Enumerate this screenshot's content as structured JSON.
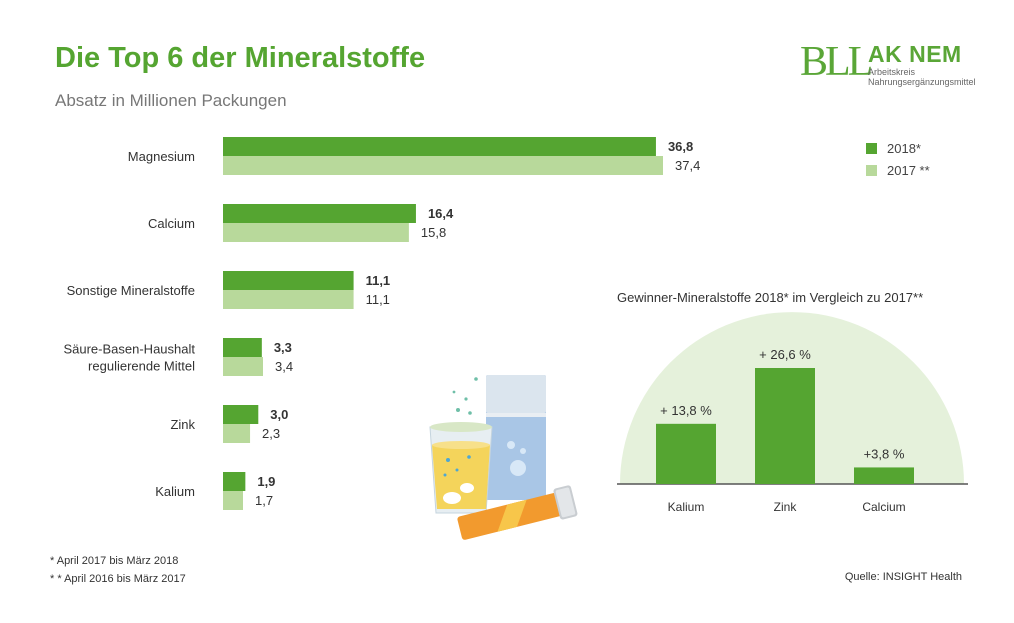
{
  "title": "Die Top 6 der Mineralstoffe",
  "subtitle": "Absatz in Millionen Packungen",
  "logo": {
    "bll": "BLL",
    "ak": "AK NEM",
    "line1": "Arbeitskreis",
    "line2": "Nahrungsergänzungsmittel"
  },
  "legend": {
    "s2018": "2018*",
    "s2017": "2017 **"
  },
  "footnotes": {
    "f1": "*    April 2017 bis März 2018",
    "f2": "* *  April 2016 bis März 2017"
  },
  "source": "Quelle: INSIGHT Health",
  "colors": {
    "dark_green": "#55a531",
    "light_green": "#b8d99b",
    "arc_bg": "#e5f1db"
  },
  "chart_data": [
    {
      "type": "bar",
      "orientation": "horizontal",
      "title": "Die Top 6 der Mineralstoffe",
      "subtitle": "Absatz in Millionen Packungen",
      "categories": [
        "Magnesium",
        "Calcium",
        "Sonstige Mineralstoffe",
        "Säure-Basen-Haushalt regulierende Mittel",
        "Zink",
        "Kalium"
      ],
      "category_lines": [
        [
          "Magnesium"
        ],
        [
          "Calcium"
        ],
        [
          "Sonstige Mineralstoffe"
        ],
        [
          "Säure-Basen-Haushalt",
          "regulierende Mittel"
        ],
        [
          "Zink"
        ],
        [
          "Kalium"
        ]
      ],
      "series": [
        {
          "name": "2018*",
          "values": [
            36.8,
            16.4,
            11.1,
            3.3,
            3.0,
            1.9
          ],
          "labels": [
            "36,8",
            "16,4",
            "11,1",
            "3,3",
            "3,0",
            "1,9"
          ]
        },
        {
          "name": "2017 **",
          "values": [
            37.4,
            15.8,
            11.1,
            3.4,
            2.3,
            1.7
          ],
          "labels": [
            "37,4",
            "15,8",
            "11,1",
            "3,4",
            "2,3",
            "1,7"
          ]
        }
      ],
      "xlim": [
        0,
        37.4
      ],
      "legend": "top-right",
      "grid": false
    },
    {
      "type": "bar",
      "title": "Gewinner-Mineralstoffe 2018* im Vergleich zu 2017**",
      "categories": [
        "Kalium",
        "Zink",
        "Calcium"
      ],
      "values": [
        13.8,
        26.6,
        3.8
      ],
      "labels": [
        "+ 13,8 %",
        "+ 26,6 %",
        "+3,8 %"
      ],
      "ylim": [
        0,
        26.6
      ],
      "grid": false
    }
  ]
}
